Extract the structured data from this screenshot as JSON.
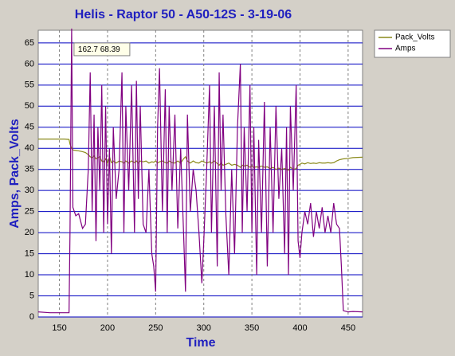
{
  "chart_data": {
    "type": "line",
    "title": "Helis - Raptor 50 - A50-12S - 3-19-06",
    "xlabel": "Time",
    "ylabel": "Amps, Pack_Volts",
    "annotation": "162.7 68.39",
    "legend": "top-right",
    "grid": true,
    "xlim": [
      128,
      465
    ],
    "ylim": [
      0,
      68
    ],
    "xticks": [
      150,
      200,
      250,
      300,
      350,
      400,
      450
    ],
    "yticks": [
      0,
      5,
      10,
      15,
      20,
      25,
      30,
      35,
      40,
      45,
      50,
      55,
      60,
      65
    ],
    "x": [
      128,
      140,
      155,
      160,
      161,
      162.7,
      164,
      167,
      170,
      174,
      177,
      180,
      182,
      184,
      186,
      188,
      190,
      192,
      194,
      196,
      198,
      200,
      202,
      204,
      206,
      209,
      212,
      215,
      217,
      219,
      222,
      225,
      228,
      230,
      232,
      234,
      237,
      240,
      243,
      246,
      248,
      250,
      252,
      254,
      257,
      260,
      262,
      264,
      267,
      270,
      273,
      276,
      279,
      281,
      283,
      286,
      289,
      292,
      295,
      298,
      300,
      303,
      306,
      308,
      311,
      314,
      316,
      318,
      320,
      323,
      326,
      329,
      332,
      335,
      338,
      340,
      342,
      345,
      348,
      350,
      352,
      355,
      357,
      360,
      363,
      366,
      369,
      372,
      375,
      378,
      381,
      384,
      386,
      388,
      390,
      393,
      396,
      398,
      400,
      402,
      405,
      408,
      411,
      414,
      417,
      420,
      423,
      426,
      429,
      432,
      435,
      438,
      441,
      443,
      445,
      450,
      455,
      465
    ],
    "series": [
      {
        "name": "Pack_Volts",
        "color": "#8a8a1a",
        "values": [
          42.2,
          42.2,
          42.2,
          42.1,
          41,
          40,
          39.6,
          39.5,
          39.4,
          39.2,
          39,
          38.5,
          38,
          37.8,
          38.2,
          37.5,
          37.8,
          38,
          37,
          36.8,
          37.5,
          36.5,
          38,
          36.6,
          37,
          36.5,
          37,
          36.8,
          36.5,
          37,
          36.5,
          37,
          36.6,
          37,
          36.5,
          37,
          36.8,
          37,
          36.5,
          36.8,
          36.7,
          37,
          36.5,
          36.8,
          37,
          36.6,
          36.5,
          37,
          36.6,
          36.5,
          37,
          36.5,
          37.5,
          38,
          37,
          36.5,
          37,
          36.6,
          36.5,
          37,
          36.8,
          36.5,
          36.8,
          36.5,
          37,
          36.4,
          36,
          36.5,
          36,
          36.2,
          36.5,
          36,
          36.2,
          36,
          35.5,
          36,
          35.8,
          36,
          35.5,
          35.8,
          35.5,
          35.6,
          35.5,
          35.8,
          35.5,
          35.6,
          35.2,
          35.5,
          35,
          35.3,
          35,
          35.2,
          35,
          34.8,
          35.5,
          35,
          35.2,
          36,
          36.2,
          36.5,
          36.3,
          36.6,
          36.4,
          36.5,
          36.4,
          36.6,
          36.5,
          36.5,
          36.6,
          36.5,
          36.6,
          37,
          37.3,
          37.4,
          37.5,
          37.6,
          37.8,
          37.9
        ]
      },
      {
        "name": "Amps",
        "color": "#800080",
        "values": [
          1.2,
          1,
          1,
          1,
          20,
          68.39,
          26,
          24,
          24.5,
          21,
          22,
          35,
          58,
          25,
          48,
          18,
          45,
          30,
          55,
          20,
          50,
          22,
          40,
          15,
          45,
          28,
          35,
          58,
          20,
          50,
          30,
          55,
          20,
          56,
          28,
          50,
          22,
          20,
          35,
          15,
          12,
          6,
          45,
          59,
          25,
          54,
          20,
          50,
          30,
          48,
          21,
          40,
          20,
          6,
          48,
          25,
          35,
          30,
          20,
          8,
          18,
          35,
          55,
          20,
          50,
          12,
          58,
          30,
          48,
          24,
          10,
          35,
          15,
          45,
          60,
          20,
          45,
          25,
          55,
          20,
          45,
          10,
          42,
          20,
          51,
          12,
          45,
          20,
          50,
          28,
          40,
          15,
          45,
          10,
          50,
          30,
          55,
          18,
          14,
          20,
          25,
          22,
          27,
          19,
          25,
          21,
          26,
          20,
          24,
          20,
          27,
          22,
          21,
          12,
          1.5,
          1.2,
          1.3,
          1.2
        ]
      }
    ]
  }
}
